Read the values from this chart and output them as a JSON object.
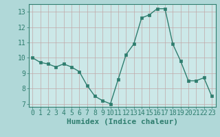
{
  "x": [
    0,
    1,
    2,
    3,
    4,
    5,
    6,
    7,
    8,
    9,
    10,
    11,
    12,
    13,
    14,
    15,
    16,
    17,
    18,
    19,
    20,
    21,
    22,
    23
  ],
  "y": [
    10.0,
    9.7,
    9.6,
    9.4,
    9.6,
    9.4,
    9.1,
    8.2,
    7.5,
    7.2,
    7.0,
    8.6,
    10.2,
    10.9,
    12.6,
    12.8,
    13.2,
    13.2,
    10.9,
    9.8,
    8.5,
    8.5,
    8.7,
    7.5
  ],
  "line_color": "#2e7d6e",
  "marker_color": "#2e7d6e",
  "plot_bg_color": "#cce8e8",
  "fig_bg_color": "#b0d8d8",
  "grid_color": "#c0a8a8",
  "xlabel": "Humidex (Indice chaleur)",
  "xlabel_fontsize": 8,
  "tick_fontsize": 7,
  "ylim": [
    6.8,
    13.5
  ],
  "yticks": [
    7,
    8,
    9,
    10,
    11,
    12,
    13
  ],
  "xlim": [
    -0.5,
    23.5
  ],
  "xticks": [
    0,
    1,
    2,
    3,
    4,
    5,
    6,
    7,
    8,
    9,
    10,
    11,
    12,
    13,
    14,
    15,
    16,
    17,
    18,
    19,
    20,
    21,
    22,
    23
  ],
  "tick_color": "#2e7d6e",
  "label_color": "#2e7d6e"
}
